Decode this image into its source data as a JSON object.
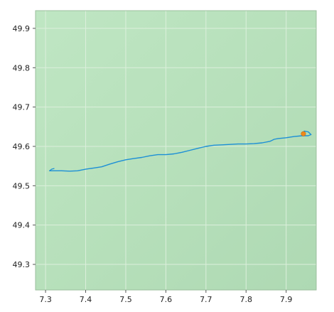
{
  "map": {
    "xlim": [
      7.275,
      7.975
    ],
    "ylim": [
      49.235,
      49.945
    ],
    "x_ticks": [
      "7.3",
      "7.4",
      "7.5",
      "7.6",
      "7.7",
      "7.8",
      "7.9"
    ],
    "y_ticks": [
      "49.9",
      "49.8",
      "49.7",
      "49.6",
      "49.5",
      "49.4",
      "49.3"
    ],
    "grid": true,
    "background_color": "#b9e2bd",
    "grid_color": "#dcefdc",
    "track_color": "#1c8fd6",
    "marker_color": "#f08a1c",
    "track": [
      [
        7.31,
        49.538
      ],
      [
        7.32,
        49.538
      ],
      [
        7.34,
        49.538
      ],
      [
        7.36,
        49.537
      ],
      [
        7.38,
        49.538
      ],
      [
        7.4,
        49.542
      ],
      [
        7.42,
        49.545
      ],
      [
        7.44,
        49.548
      ],
      [
        7.46,
        49.555
      ],
      [
        7.48,
        49.561
      ],
      [
        7.5,
        49.566
      ],
      [
        7.52,
        49.569
      ],
      [
        7.54,
        49.572
      ],
      [
        7.56,
        49.576
      ],
      [
        7.58,
        49.579
      ],
      [
        7.6,
        49.579
      ],
      [
        7.62,
        49.581
      ],
      [
        7.64,
        49.585
      ],
      [
        7.66,
        49.59
      ],
      [
        7.68,
        49.595
      ],
      [
        7.7,
        49.6
      ],
      [
        7.72,
        49.603
      ],
      [
        7.74,
        49.604
      ],
      [
        7.76,
        49.605
      ],
      [
        7.78,
        49.606
      ],
      [
        7.8,
        49.606
      ],
      [
        7.82,
        49.607
      ],
      [
        7.84,
        49.609
      ],
      [
        7.86,
        49.613
      ],
      [
        7.87,
        49.618
      ],
      [
        7.88,
        49.62
      ],
      [
        7.9,
        49.622
      ],
      [
        7.92,
        49.625
      ],
      [
        7.94,
        49.627
      ],
      [
        7.955,
        49.627
      ],
      [
        7.962,
        49.63
      ],
      [
        7.955,
        49.637
      ],
      [
        7.945,
        49.639
      ],
      [
        7.942,
        49.633
      ]
    ],
    "track_start_tail": [
      [
        7.31,
        49.538
      ],
      [
        7.315,
        49.542
      ],
      [
        7.322,
        49.544
      ]
    ],
    "marker": [
      7.943,
      49.632
    ]
  }
}
